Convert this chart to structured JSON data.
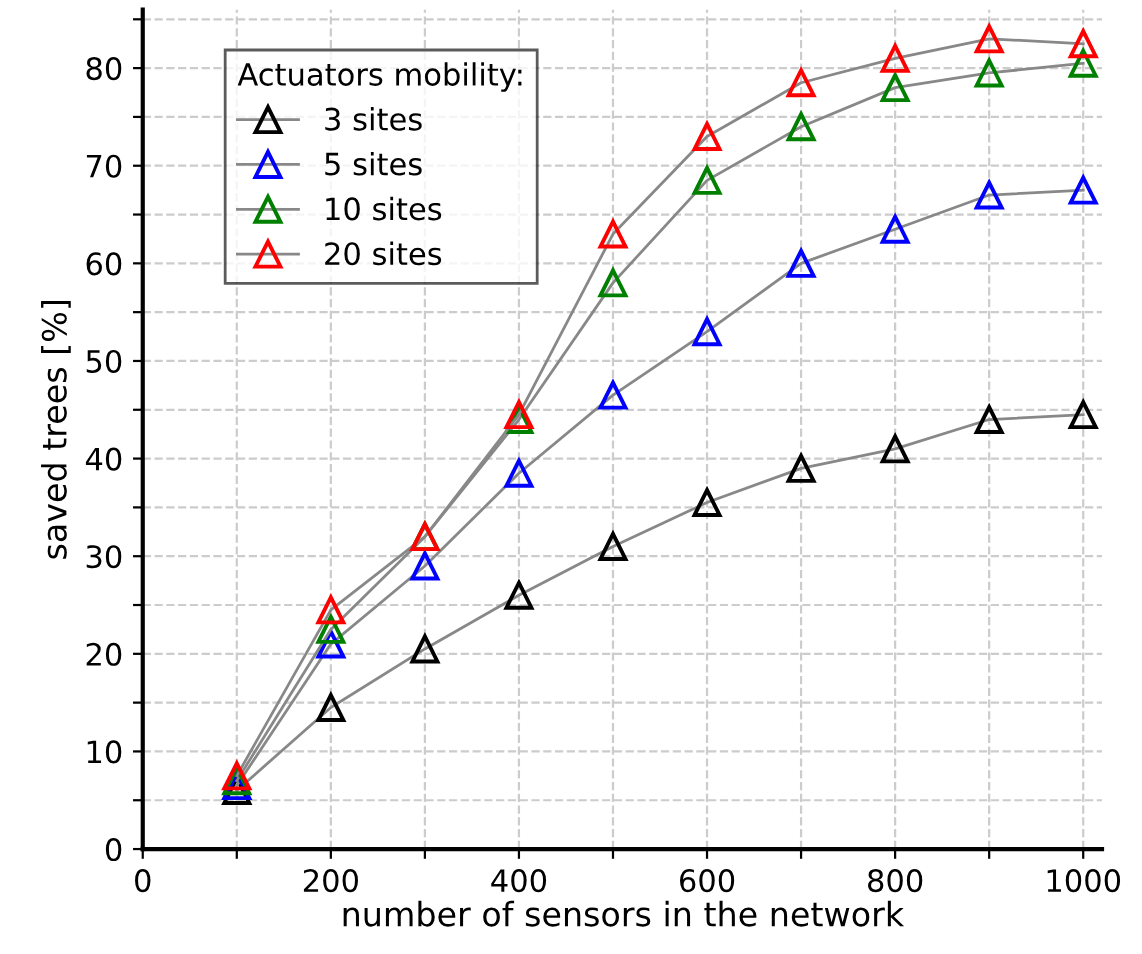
{
  "chart_data": {
    "type": "line",
    "xlabel": "number of sensors in the network",
    "ylabel": "saved trees [%]",
    "legend_title": "Actuators mobility:",
    "x": [
      100,
      200,
      300,
      400,
      500,
      600,
      700,
      800,
      900,
      1000
    ],
    "series": [
      {
        "name": "3 sites",
        "color": "#000000",
        "values": [
          6,
          14.5,
          20.5,
          26,
          31,
          35.5,
          39,
          41,
          44,
          44.5
        ]
      },
      {
        "name": "5 sites",
        "color": "#0000ff",
        "values": [
          6.5,
          21,
          29,
          38.5,
          46.5,
          53,
          60,
          63.5,
          67,
          67.5
        ]
      },
      {
        "name": "10 sites",
        "color": "#008000",
        "values": [
          7,
          22.5,
          32,
          44,
          58,
          68.5,
          74,
          78,
          79.5,
          80.5
        ]
      },
      {
        "name": "20 sites",
        "color": "#ff0000",
        "values": [
          7.5,
          24.5,
          32,
          44.5,
          63,
          73,
          78.5,
          81,
          83,
          82.5
        ]
      }
    ],
    "xlim": [
      0,
      1020
    ],
    "ylim": [
      0,
      86
    ],
    "xticks": [
      0,
      {
        "value": 100,
        "label": null
      },
      200,
      {
        "value": 300,
        "label": null
      },
      400,
      {
        "value": 500,
        "label": null
      },
      600,
      {
        "value": 700,
        "label": null
      },
      800,
      {
        "value": 900,
        "label": null
      },
      1000
    ],
    "yticks": [
      0,
      {
        "value": 5,
        "label": null
      },
      10,
      {
        "value": 15,
        "label": null
      },
      20,
      {
        "value": 25,
        "label": null
      },
      30,
      {
        "value": 35,
        "label": null
      },
      40,
      {
        "value": 45,
        "label": null
      },
      50,
      {
        "value": 55,
        "label": null
      },
      60,
      {
        "value": 65,
        "label": null
      },
      70,
      {
        "value": 75,
        "label": null
      },
      80,
      {
        "value": 85,
        "label": null
      }
    ],
    "grid": true,
    "legend": "top left",
    "marker": "triangle",
    "line_style": "solid"
  }
}
